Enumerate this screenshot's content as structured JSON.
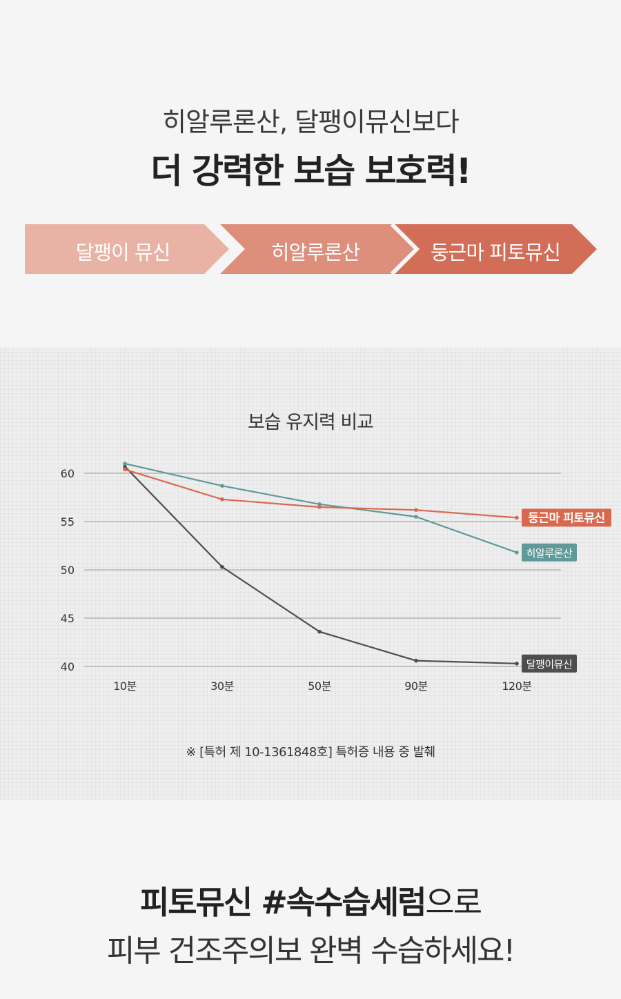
{
  "hero": {
    "subtitle": "히알루론산, 달팽이뮤신보다",
    "headline": "더 강력한 보습 보호력!"
  },
  "steps": [
    {
      "label": "달팽이 뮤신",
      "color": "#e8b2a5"
    },
    {
      "label": "히알루론산",
      "color": "#dd8f7c"
    },
    {
      "label": "둥근마 피토뮤신",
      "color": "#d26e57"
    }
  ],
  "chart_data": {
    "type": "line",
    "title": "보습 유지력 비교",
    "categories": [
      "10분",
      "30분",
      "50분",
      "90분",
      "120분"
    ],
    "y_ticks": [
      "60",
      "55",
      "50",
      "45",
      "40"
    ],
    "ylim": [
      40,
      60
    ],
    "grid": true,
    "series": [
      {
        "name": "둥근마 피토뮤신",
        "color": "#d9694e",
        "values": [
          60.4,
          57.3,
          56.5,
          56.2,
          55.4
        ]
      },
      {
        "name": "히알루론산",
        "color": "#5f9a99",
        "values": [
          61.0,
          58.7,
          56.8,
          55.5,
          51.8
        ]
      },
      {
        "name": "달팽이뮤신",
        "color": "#4e4e4e",
        "values": [
          60.7,
          50.3,
          43.6,
          40.6,
          40.3
        ]
      }
    ],
    "footnote": "※ [특허 제 10-1361848호] 특허증 내용 중 발췌"
  },
  "closing": {
    "line1_bold": "피토뮤신 #속수습세럼",
    "line1_rest": "으로",
    "line2": "피부 건조주의보 완벽 수습하세요!"
  }
}
